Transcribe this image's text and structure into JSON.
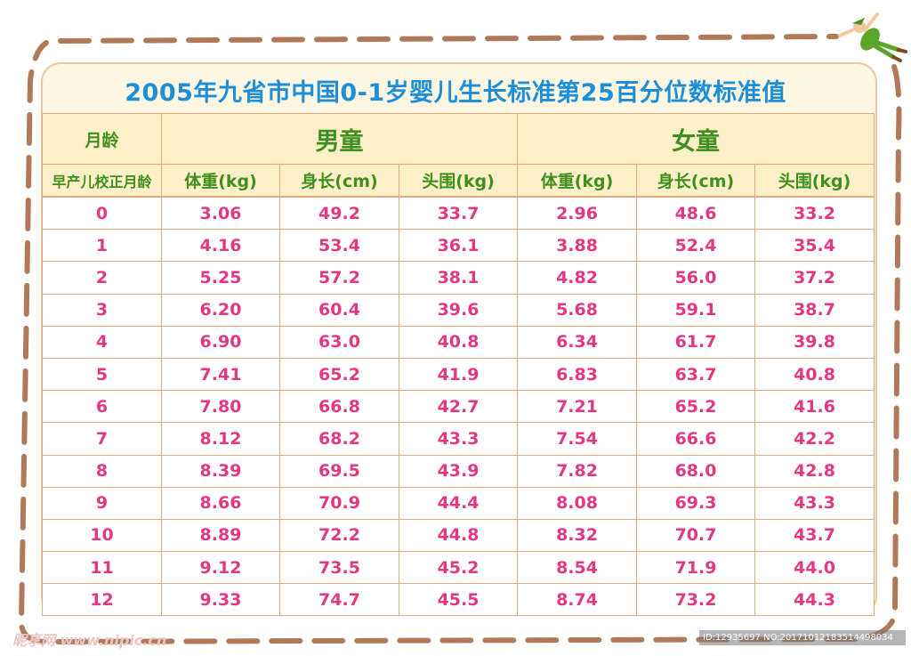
{
  "title": "2005年九省市中国0-1岁婴儿生长标准第25百分位数标准值",
  "header": {
    "age_label": "月龄",
    "age_sublabel": "早产儿校正月龄",
    "boys": "男童",
    "girls": "女童",
    "cols": [
      "体重(kg)",
      "身长(cm)",
      "头围(kg)",
      "体重(kg)",
      "身长(cm)",
      "头围(kg)"
    ]
  },
  "rows": [
    [
      "0",
      "3.06",
      "49.2",
      "33.7",
      "2.96",
      "48.6",
      "33.2"
    ],
    [
      "1",
      "4.16",
      "53.4",
      "36.1",
      "3.88",
      "52.4",
      "35.4"
    ],
    [
      "2",
      "5.25",
      "57.2",
      "38.1",
      "4.82",
      "56.0",
      "37.2"
    ],
    [
      "3",
      "6.20",
      "60.4",
      "39.6",
      "5.68",
      "59.1",
      "38.7"
    ],
    [
      "4",
      "6.90",
      "63.0",
      "40.8",
      "6.34",
      "61.7",
      "39.8"
    ],
    [
      "5",
      "7.41",
      "65.2",
      "41.9",
      "6.83",
      "63.7",
      "40.8"
    ],
    [
      "6",
      "7.80",
      "66.8",
      "42.7",
      "7.21",
      "65.2",
      "41.6"
    ],
    [
      "7",
      "8.12",
      "68.2",
      "43.3",
      "7.54",
      "66.6",
      "42.2"
    ],
    [
      "8",
      "8.39",
      "69.5",
      "43.9",
      "7.82",
      "68.0",
      "42.8"
    ],
    [
      "9",
      "8.66",
      "70.9",
      "44.4",
      "8.08",
      "69.3",
      "43.3"
    ],
    [
      "10",
      "8.89",
      "72.2",
      "44.8",
      "8.32",
      "70.7",
      "43.7"
    ],
    [
      "11",
      "9.12",
      "73.5",
      "45.2",
      "8.54",
      "71.9",
      "44.0"
    ],
    [
      "12",
      "9.33",
      "74.7",
      "45.5",
      "8.74",
      "73.2",
      "44.3"
    ]
  ],
  "watermark": {
    "left": "昵享网 www.nipic.cn",
    "right": "ID:12935697 NO:20171012183514498034"
  },
  "colors": {
    "title": "#1e8fd6",
    "header_text": "#3f8f1e",
    "values": "#e23884",
    "border": "#e3a77a",
    "dash": "#b07a5a"
  }
}
